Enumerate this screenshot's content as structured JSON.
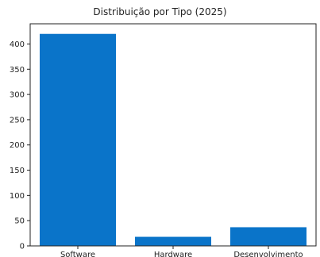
{
  "chart_data": {
    "type": "bar",
    "title": "Distribuição por Tipo (2025)",
    "xlabel": "",
    "ylabel": "",
    "categories": [
      "Software",
      "Hardware",
      "Desenvolvimento"
    ],
    "values": [
      420,
      18,
      37
    ],
    "ylim": [
      0,
      440
    ],
    "yticks": [
      0,
      50,
      100,
      150,
      200,
      250,
      300,
      350,
      400
    ],
    "grid": false,
    "bar_color": "#0a74c9"
  }
}
